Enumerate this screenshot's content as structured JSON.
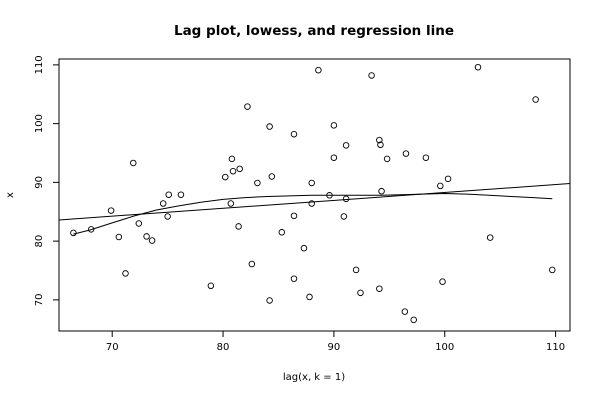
{
  "chart_data": {
    "type": "scatter",
    "title": "Lag plot, lowess, and regression line",
    "xlabel": "lag(x, k = 1)",
    "ylabel": "x",
    "xlim": [
      65.2,
      111.3
    ],
    "ylim": [
      64.7,
      111.0
    ],
    "x_ticks": [
      70,
      80,
      90,
      100,
      110
    ],
    "y_ticks": [
      70,
      80,
      90,
      100,
      110
    ],
    "grid": false,
    "points": [
      {
        "x": 66.5,
        "y": 81.4
      },
      {
        "x": 68.1,
        "y": 82.0
      },
      {
        "x": 69.9,
        "y": 85.2
      },
      {
        "x": 70.6,
        "y": 80.7
      },
      {
        "x": 71.2,
        "y": 74.5
      },
      {
        "x": 71.9,
        "y": 93.3
      },
      {
        "x": 72.4,
        "y": 83.0
      },
      {
        "x": 73.1,
        "y": 80.8
      },
      {
        "x": 73.6,
        "y": 80.1
      },
      {
        "x": 74.6,
        "y": 86.4
      },
      {
        "x": 75.0,
        "y": 84.2
      },
      {
        "x": 75.1,
        "y": 87.9
      },
      {
        "x": 76.2,
        "y": 87.9
      },
      {
        "x": 78.9,
        "y": 72.4
      },
      {
        "x": 80.2,
        "y": 90.9
      },
      {
        "x": 80.7,
        "y": 86.4
      },
      {
        "x": 80.8,
        "y": 94.0
      },
      {
        "x": 80.9,
        "y": 91.9
      },
      {
        "x": 81.4,
        "y": 82.5
      },
      {
        "x": 81.5,
        "y": 92.3
      },
      {
        "x": 82.2,
        "y": 102.9
      },
      {
        "x": 82.6,
        "y": 76.1
      },
      {
        "x": 83.1,
        "y": 89.9
      },
      {
        "x": 84.2,
        "y": 99.5
      },
      {
        "x": 84.2,
        "y": 69.9
      },
      {
        "x": 84.4,
        "y": 91.0
      },
      {
        "x": 85.3,
        "y": 81.5
      },
      {
        "x": 86.4,
        "y": 98.2
      },
      {
        "x": 86.4,
        "y": 84.3
      },
      {
        "x": 86.4,
        "y": 73.6
      },
      {
        "x": 87.3,
        "y": 78.8
      },
      {
        "x": 87.8,
        "y": 70.5
      },
      {
        "x": 88.0,
        "y": 86.4
      },
      {
        "x": 88.0,
        "y": 89.9
      },
      {
        "x": 88.6,
        "y": 109.1
      },
      {
        "x": 89.6,
        "y": 87.8
      },
      {
        "x": 90.0,
        "y": 94.2
      },
      {
        "x": 90.0,
        "y": 99.7
      },
      {
        "x": 90.9,
        "y": 84.2
      },
      {
        "x": 91.1,
        "y": 96.3
      },
      {
        "x": 91.1,
        "y": 87.2
      },
      {
        "x": 92.0,
        "y": 75.1
      },
      {
        "x": 92.4,
        "y": 71.2
      },
      {
        "x": 93.4,
        "y": 108.2
      },
      {
        "x": 94.1,
        "y": 71.9
      },
      {
        "x": 94.1,
        "y": 97.2
      },
      {
        "x": 94.2,
        "y": 96.4
      },
      {
        "x": 94.3,
        "y": 88.5
      },
      {
        "x": 94.8,
        "y": 94.0
      },
      {
        "x": 96.4,
        "y": 68.0
      },
      {
        "x": 96.5,
        "y": 94.9
      },
      {
        "x": 97.2,
        "y": 66.6
      },
      {
        "x": 98.3,
        "y": 94.2
      },
      {
        "x": 99.6,
        "y": 89.4
      },
      {
        "x": 99.8,
        "y": 73.1
      },
      {
        "x": 100.3,
        "y": 90.6
      },
      {
        "x": 103.0,
        "y": 109.6
      },
      {
        "x": 104.1,
        "y": 80.6
      },
      {
        "x": 108.2,
        "y": 104.1
      },
      {
        "x": 109.7,
        "y": 75.1
      }
    ],
    "regression_line": [
      {
        "x": 65.2,
        "y": 83.6
      },
      {
        "x": 111.3,
        "y": 89.8
      }
    ],
    "lowess_line": [
      {
        "x": 66.5,
        "y": 81.2
      },
      {
        "x": 68.0,
        "y": 81.9
      },
      {
        "x": 70.0,
        "y": 83.1
      },
      {
        "x": 72.0,
        "y": 84.3
      },
      {
        "x": 74.0,
        "y": 85.3
      },
      {
        "x": 76.0,
        "y": 86.0
      },
      {
        "x": 78.0,
        "y": 86.6
      },
      {
        "x": 80.0,
        "y": 87.1
      },
      {
        "x": 82.0,
        "y": 87.4
      },
      {
        "x": 84.0,
        "y": 87.6
      },
      {
        "x": 86.0,
        "y": 87.7
      },
      {
        "x": 88.0,
        "y": 87.8
      },
      {
        "x": 90.0,
        "y": 87.8
      },
      {
        "x": 92.0,
        "y": 87.8
      },
      {
        "x": 94.0,
        "y": 87.8
      },
      {
        "x": 96.0,
        "y": 87.9
      },
      {
        "x": 98.0,
        "y": 88.0
      },
      {
        "x": 100.0,
        "y": 88.1
      },
      {
        "x": 102.0,
        "y": 88.0
      },
      {
        "x": 104.0,
        "y": 87.8
      },
      {
        "x": 106.0,
        "y": 87.6
      },
      {
        "x": 108.0,
        "y": 87.4
      },
      {
        "x": 109.7,
        "y": 87.2
      }
    ]
  }
}
